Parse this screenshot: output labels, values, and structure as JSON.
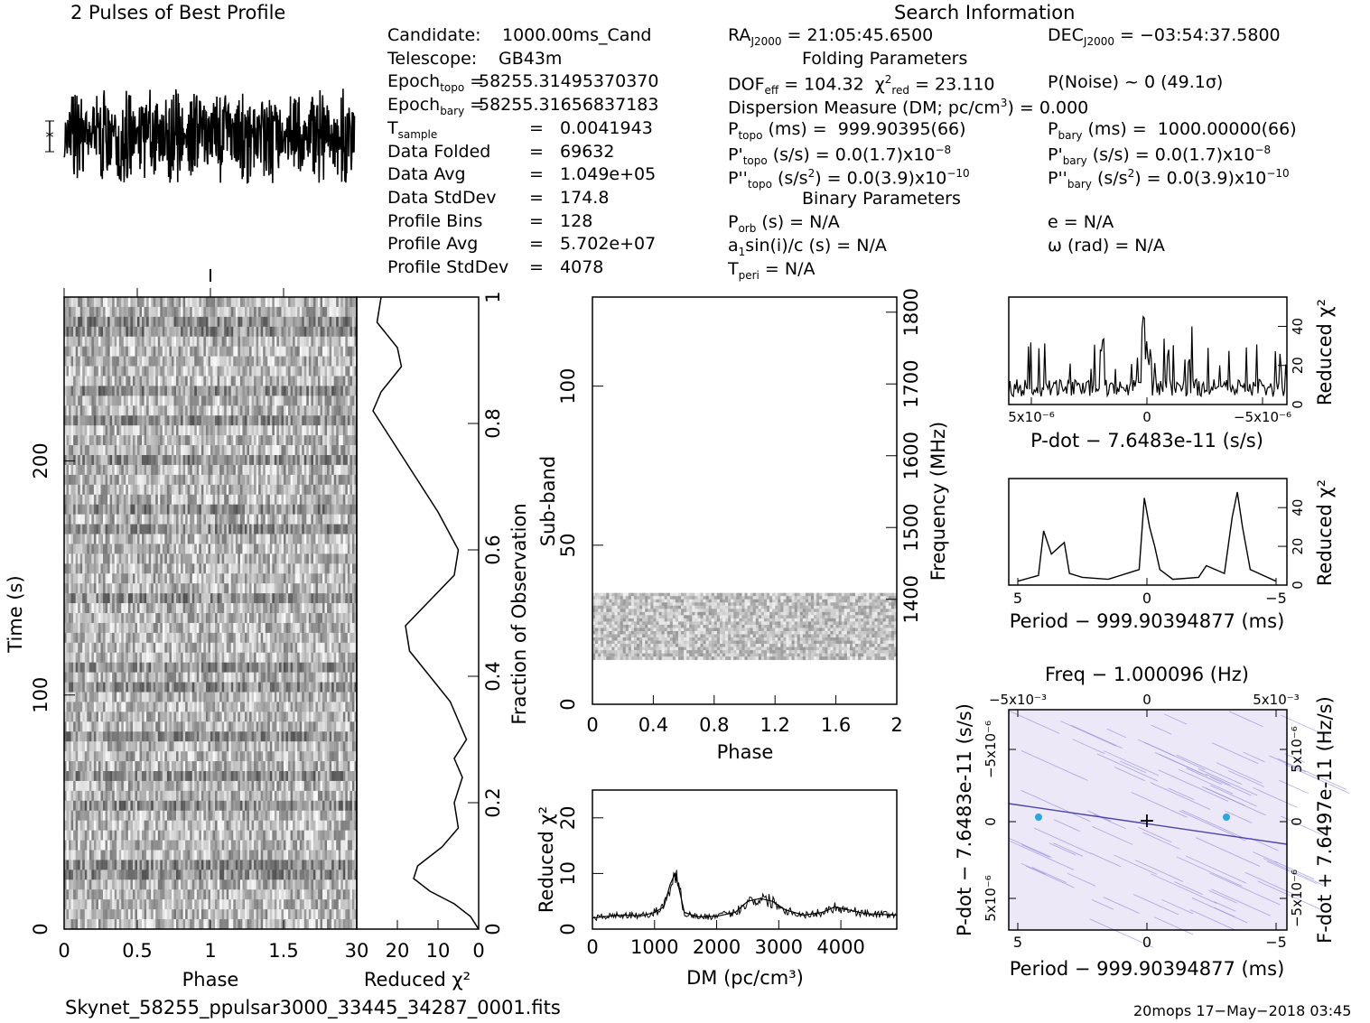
{
  "header": {
    "profile_title": "2 Pulses of Best Profile",
    "search_title": "Search Information",
    "folding_title": "Folding Parameters",
    "binary_title": "Binary Parameters"
  },
  "info_left": [
    {
      "label": "Candidate:",
      "value": "1000.00ms_Cand"
    },
    {
      "label": "Telescope:",
      "value": "GB43m"
    },
    {
      "label": "Epoch_topo = ",
      "value": "58255.31495370370"
    },
    {
      "label": "Epoch_bary = ",
      "value": "58255.31656837183"
    },
    {
      "label": "T_sample",
      "value": "0.0041943"
    },
    {
      "label": "Data Folded",
      "value": "69632"
    },
    {
      "label": "Data Avg",
      "value": "1.049e+05"
    },
    {
      "label": "Data StdDev",
      "value": "174.8"
    },
    {
      "label": "Profile Bins",
      "value": "128"
    },
    {
      "label": "Profile Avg",
      "value": "5.702e+07"
    },
    {
      "label": "Profile StdDev",
      "value": "4078"
    }
  ],
  "info_mid": {
    "ra": "RA_J2000 = 21:05:45.6500",
    "dof": "DOF_eff = 104.32  χ²_red = 23.110",
    "dm": "Dispersion Measure (DM; pc/cm³) = 0.000",
    "p_topo": "P_topo (ms) =  999.90395(66)",
    "pd_topo": "P'_topo (s/s) = 0.0(1.7)x10⁻⁸",
    "pdd_topo": "P''_topo (s/s²) = 0.0(3.9)x10⁻¹⁰",
    "p_orb": "P_orb (s) = N/A",
    "a1": "a₁sin(i)/c (s) = N/A",
    "t_peri": "T_peri = N/A"
  },
  "info_right": {
    "dec": "DEC_J2000 = −03:54:37.5800",
    "p_noise": "P(Noise) ~ 0   (49.1σ)",
    "p_bary": "P_bary (ms) =  1000.00000(66)",
    "pd_bary": "P'_bary (s/s) = 0.0(1.7)x10⁻⁸",
    "pdd_bary": "P''_bary (s/s²) = 0.0(3.9)x10⁻¹⁰",
    "e": "e = N/A",
    "omega": "ω (rad) = N/A"
  },
  "footer": {
    "filename": "Skynet_58255_ppulsar3000_33445_34287_0001.fits",
    "stamp": "20mops 17−May−2018 03:45"
  },
  "colors": {
    "ink": "#000000",
    "ppdot_bg": "#ece8f7",
    "ppdot_line": "#8d86d8",
    "ppdot_peak": "#2aa6e0"
  },
  "chart_data": [
    {
      "id": "profile",
      "type": "line",
      "title": "2 Pulses of Best Profile",
      "x": [
        0,
        2
      ],
      "ylim": [
        -1,
        1
      ],
      "note_pattern": "dense noise-like profile spanning two pulse phases"
    },
    {
      "id": "time_phase",
      "type": "heatmap",
      "xlabel": "Phase",
      "ylabel": "Time (s)",
      "x_ticks": [
        "0",
        "0.5",
        "1",
        "1.5"
      ],
      "xlim": [
        0,
        2
      ],
      "y_ticks": [
        "0",
        "100",
        "200"
      ],
      "ylim": [
        0,
        270
      ],
      "colormap": "grayscale"
    },
    {
      "id": "chi_vs_time",
      "type": "line",
      "xlabel": "Reduced χ²",
      "x_ticks": [
        "30",
        "20",
        "10",
        "0"
      ],
      "xlim": [
        30,
        0
      ],
      "ylabel_right": "Fraction of Observation",
      "y_ticks": [
        "0",
        "0.2",
        "0.4",
        "0.6",
        "0.8",
        "1"
      ],
      "ylim": [
        0,
        1
      ],
      "points": [
        [
          0,
          0
        ],
        [
          2,
          0.02
        ],
        [
          6,
          0.04
        ],
        [
          12,
          0.06
        ],
        [
          16,
          0.08
        ],
        [
          15,
          0.1
        ],
        [
          9,
          0.13
        ],
        [
          5,
          0.16
        ],
        [
          6,
          0.2
        ],
        [
          4,
          0.24
        ],
        [
          6,
          0.27
        ],
        [
          3,
          0.3
        ],
        [
          5,
          0.33
        ],
        [
          7,
          0.36
        ],
        [
          12,
          0.4
        ],
        [
          17,
          0.44
        ],
        [
          18,
          0.48
        ],
        [
          12,
          0.52
        ],
        [
          6,
          0.56
        ],
        [
          5,
          0.6
        ],
        [
          10,
          0.66
        ],
        [
          16,
          0.72
        ],
        [
          22,
          0.78
        ],
        [
          26,
          0.82
        ],
        [
          24,
          0.85
        ],
        [
          19,
          0.89
        ],
        [
          20,
          0.92
        ],
        [
          25,
          0.96
        ],
        [
          24,
          1.0
        ]
      ]
    },
    {
      "id": "subband_phase",
      "type": "heatmap",
      "xlabel": "Phase",
      "ylabel": "Sub-band",
      "x_ticks": [
        "0",
        "0.4",
        "0.8",
        "1.2",
        "1.6",
        "2"
      ],
      "xlim": [
        0,
        2
      ],
      "y_ticks": [
        "0",
        "50",
        "100"
      ],
      "ylim": [
        0,
        128
      ],
      "ylabel_right": "Frequency (MHz)",
      "right_ticks": [
        "1400",
        "1500",
        "1600",
        "1700",
        "1800"
      ],
      "band_rows": [
        14,
        35
      ]
    },
    {
      "id": "dm_chi",
      "type": "line",
      "xlabel": "DM (pc/cm³)",
      "ylabel": "Reduced χ²",
      "x_ticks": [
        "0",
        "1000",
        "2000",
        "3000",
        "4000"
      ],
      "xlim": [
        0,
        4900
      ],
      "y_ticks": [
        "0",
        "10",
        "20"
      ],
      "ylim": [
        0,
        25
      ],
      "points": [
        [
          0,
          2
        ],
        [
          400,
          2.5
        ],
        [
          800,
          2.4
        ],
        [
          1000,
          3
        ],
        [
          1150,
          4
        ],
        [
          1250,
          8
        ],
        [
          1330,
          10
        ],
        [
          1400,
          7
        ],
        [
          1480,
          3
        ],
        [
          1700,
          2.2
        ],
        [
          2000,
          2.3
        ],
        [
          2300,
          3
        ],
        [
          2500,
          5
        ],
        [
          2700,
          5.5
        ],
        [
          2900,
          5
        ],
        [
          3100,
          3.5
        ],
        [
          3400,
          2.5
        ],
        [
          3700,
          3
        ],
        [
          3900,
          4
        ],
        [
          4100,
          3.5
        ],
        [
          4400,
          2.8
        ],
        [
          4900,
          2.5
        ]
      ]
    },
    {
      "id": "pdot_chi",
      "type": "line",
      "xlabel": "P-dot − 7.6483e-11 (s/s)",
      "ylabel_right": "Reduced χ²",
      "x_ticks": [
        "5x10⁻⁶",
        "0",
        "−5x10⁻⁶"
      ],
      "y_ticks": [
        "0",
        "20",
        "40"
      ],
      "ylim": [
        0,
        55
      ]
    },
    {
      "id": "period_chi",
      "type": "line",
      "xlabel": "Period − 999.90394877 (ms)",
      "ylabel_right": "Reduced χ²",
      "x_ticks": [
        "5",
        "0",
        "−5"
      ],
      "y_ticks": [
        "0",
        "20",
        "40"
      ],
      "ylim": [
        0,
        55
      ],
      "points": [
        [
          5,
          2
        ],
        [
          4.2,
          5
        ],
        [
          4,
          28
        ],
        [
          3.7,
          16
        ],
        [
          3.2,
          22
        ],
        [
          3,
          6
        ],
        [
          2.5,
          4
        ],
        [
          1.5,
          3
        ],
        [
          0.3,
          8
        ],
        [
          0.1,
          45
        ],
        [
          -0.1,
          30
        ],
        [
          -0.3,
          20
        ],
        [
          -0.5,
          8
        ],
        [
          -1,
          3
        ],
        [
          -2,
          4
        ],
        [
          -2.3,
          10
        ],
        [
          -3,
          6
        ],
        [
          -3.3,
          35
        ],
        [
          -3.5,
          48
        ],
        [
          -3.7,
          30
        ],
        [
          -4,
          8
        ],
        [
          -5,
          2
        ]
      ]
    },
    {
      "id": "p_pdot",
      "type": "heatmap",
      "title": "Freq − 1.000096 (Hz)",
      "xlabel": "Period − 999.90394877 (ms)",
      "x_ticks": [
        "5",
        "0",
        "−5"
      ],
      "top_ticks": [
        "−5x10⁻³",
        "0",
        "5x10⁻³"
      ],
      "ylabel": "P-dot − 7.6483e-11 (s/s)",
      "y_ticks": [
        "−5x10⁻⁶",
        "0",
        "5x10⁻⁶"
      ],
      "ylabel_right": "F-dot + 7.6497e-11 (Hz/s)",
      "right_ticks": [
        "5x10⁻⁶",
        "0",
        "−5x10⁻⁶"
      ]
    }
  ]
}
